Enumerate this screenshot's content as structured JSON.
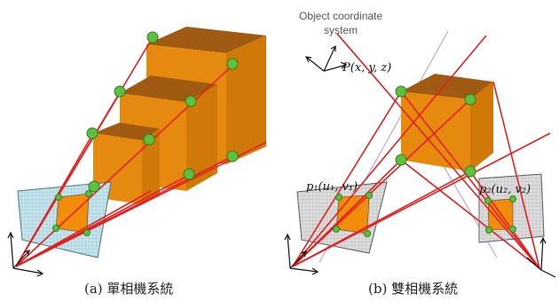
{
  "captions": {
    "left": "(a) 單相機系統",
    "right": "(b) 雙相機系統"
  },
  "labels": {
    "object_system_line1": "Object coordinate",
    "object_system_line2": "system",
    "point_P": "P(x, y, z)",
    "point_p1": "p₁(u₁, v₁)",
    "point_p2": "p₂(u₂, v₂)"
  },
  "colors": {
    "box_front": "#e58a0f",
    "box_side": "#d07808",
    "box_top": "#a05a12",
    "ray": "#e02020",
    "marker": "#5fbf3f",
    "marker_edge": "#2f7f1f",
    "image_plane_blue": "#bfe6ef",
    "image_plane_gray": "#dcdcdc",
    "purple_line": "#b9a6d6"
  }
}
